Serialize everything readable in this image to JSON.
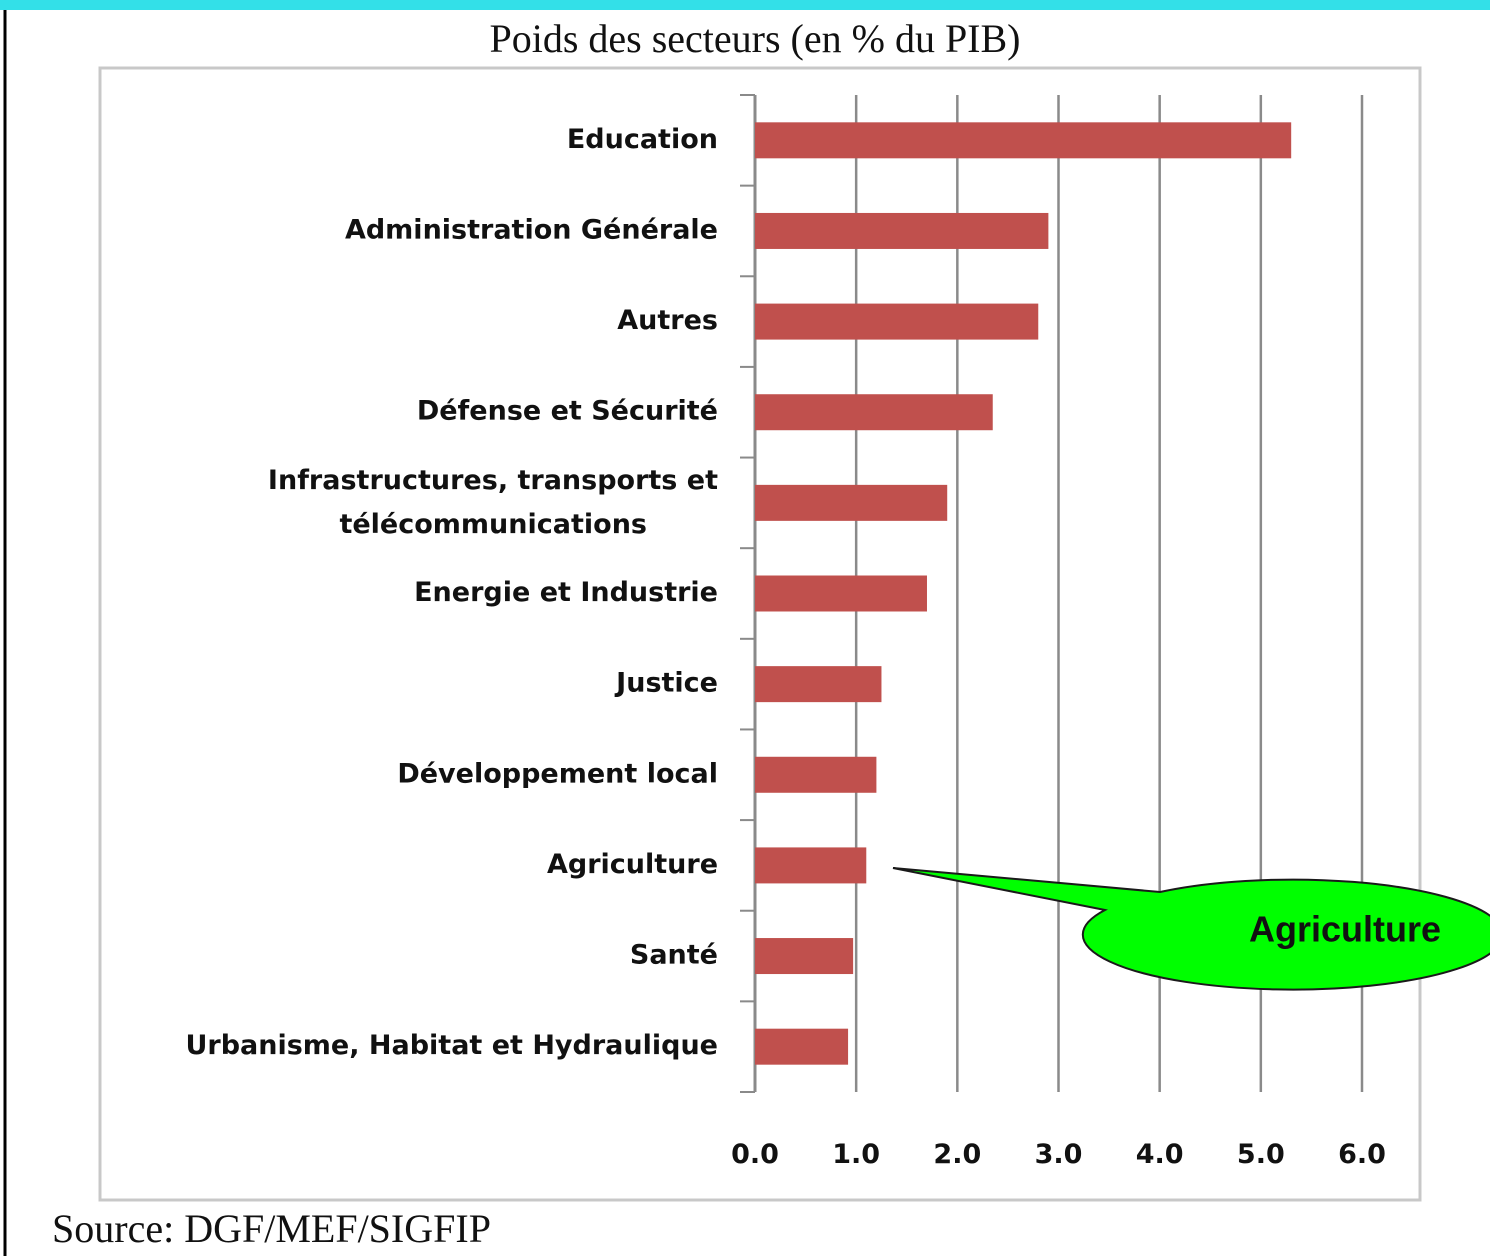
{
  "chart_data": {
    "type": "bar",
    "orientation": "horizontal",
    "title": "Poids des secteurs (en % du PIB)",
    "source": "Source: DGF/MEF/SIGFIP",
    "categories": [
      "Education",
      "Administration Générale",
      "Autres",
      "Défense et Sécurité",
      "Infrastructures, transports et\ntélécommunications",
      "Energie et Industrie",
      "Justice",
      "Développement local",
      "Agriculture",
      "Santé",
      "Urbanisme, Habitat et Hydraulique"
    ],
    "values": [
      5.3,
      2.9,
      2.8,
      2.35,
      1.9,
      1.7,
      1.25,
      1.2,
      1.1,
      0.97,
      0.92
    ],
    "color": "#c0504d",
    "xlim": [
      0,
      6
    ],
    "xticks": [
      {
        "value": 0,
        "label": "0.0"
      },
      {
        "value": 1,
        "label": "1.0"
      },
      {
        "value": 2,
        "label": "2.0"
      },
      {
        "value": 3,
        "label": "3.0"
      },
      {
        "value": 4,
        "label": "4.0"
      },
      {
        "value": 5,
        "label": "5.0"
      },
      {
        "value": 6,
        "label": "6.0"
      }
    ],
    "grid": true,
    "annotation": {
      "text": "Agriculture",
      "category_index": 8,
      "color": "#00ff00"
    }
  }
}
